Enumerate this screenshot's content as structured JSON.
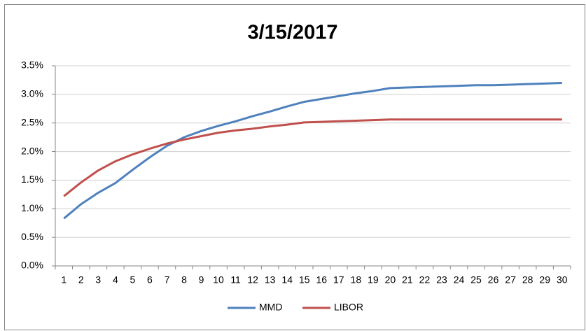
{
  "chart_data": {
    "type": "line",
    "title": "3/15/2017",
    "categories": [
      "1",
      "2",
      "3",
      "4",
      "5",
      "6",
      "7",
      "8",
      "9",
      "10",
      "11",
      "12",
      "13",
      "14",
      "15",
      "16",
      "17",
      "18",
      "19",
      "20",
      "21",
      "22",
      "23",
      "24",
      "25",
      "26",
      "27",
      "28",
      "29",
      "30"
    ],
    "series": [
      {
        "name": "MMD",
        "color": "#4f81bd",
        "values": [
          0.83,
          1.08,
          1.28,
          1.45,
          1.68,
          1.9,
          2.1,
          2.25,
          2.36,
          2.45,
          2.53,
          2.62,
          2.7,
          2.79,
          2.87,
          2.92,
          2.97,
          3.02,
          3.06,
          3.11,
          3.12,
          3.13,
          3.14,
          3.15,
          3.16,
          3.16,
          3.17,
          3.18,
          3.19,
          3.2
        ]
      },
      {
        "name": "LIBOR",
        "color": "#c0504d",
        "values": [
          1.22,
          1.46,
          1.67,
          1.83,
          1.95,
          2.05,
          2.14,
          2.21,
          2.27,
          2.33,
          2.37,
          2.4,
          2.44,
          2.47,
          2.51,
          2.52,
          2.53,
          2.54,
          2.55,
          2.56,
          2.56,
          2.56,
          2.56,
          2.56,
          2.56,
          2.56,
          2.56,
          2.56,
          2.56,
          2.56
        ]
      }
    ],
    "ylim": [
      0,
      3.5
    ],
    "yticks": [
      {
        "value": 0,
        "label": "0.0%"
      },
      {
        "value": 0.5,
        "label": "0.5%"
      },
      {
        "value": 1,
        "label": "1.0%"
      },
      {
        "value": 1.5,
        "label": "1.5%"
      },
      {
        "value": 2,
        "label": "2.0%"
      },
      {
        "value": 2.5,
        "label": "2.5%"
      },
      {
        "value": 3,
        "label": "3.0%"
      },
      {
        "value": 3.5,
        "label": "3.5%"
      }
    ],
    "grid": true,
    "legend": "bottom"
  }
}
